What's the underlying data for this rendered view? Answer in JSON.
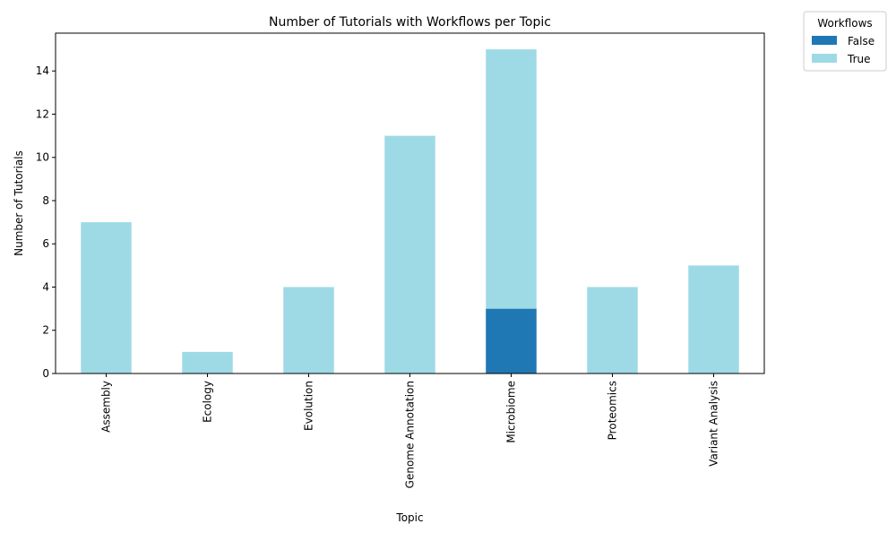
{
  "chart_data": {
    "type": "bar",
    "stacked": true,
    "title": "Number of Tutorials with Workflows per Topic",
    "xlabel": "Topic",
    "ylabel": "Number of Tutorials",
    "categories": [
      "Assembly",
      "Ecology",
      "Evolution",
      "Genome Annotation",
      "Microbiome",
      "Proteomics",
      "Variant Analysis"
    ],
    "series": [
      {
        "name": "False",
        "values": [
          0,
          0,
          0,
          0,
          3,
          0,
          0
        ],
        "color": "#1f77b4"
      },
      {
        "name": "True",
        "values": [
          7,
          1,
          4,
          11,
          12,
          4,
          5
        ],
        "color": "#9edae5"
      }
    ],
    "ylim": [
      0,
      15.75
    ],
    "yticks": [
      0,
      2,
      4,
      6,
      8,
      10,
      12,
      14
    ],
    "grid": false,
    "legend": {
      "title": "Workflows",
      "placement": "outside-top-right"
    }
  }
}
